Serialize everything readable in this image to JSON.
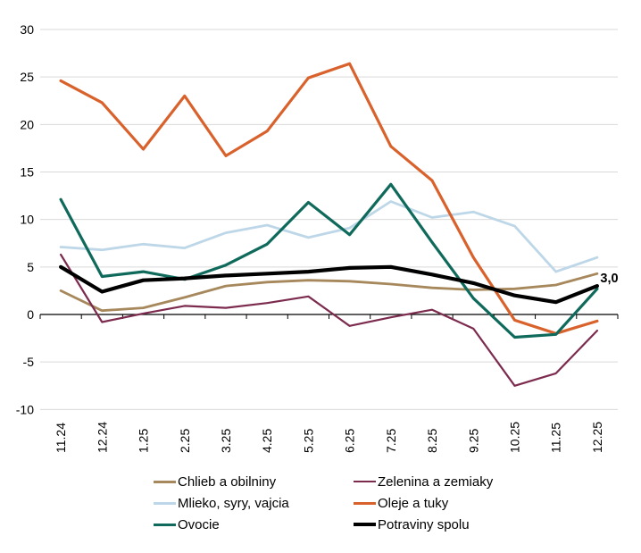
{
  "chart_data": {
    "type": "line",
    "title": "",
    "xlabel": "",
    "ylabel": "",
    "categories": [
      "11.24",
      "12.24",
      "1.25",
      "2.25",
      "3.25",
      "4.25",
      "5.25",
      "6.25",
      "7.25",
      "8.25",
      "9.25",
      "10.25",
      "11.25",
      "12.25"
    ],
    "series": [
      {
        "name": "Chlieb a obilniny",
        "color": "#A6885C",
        "stroke_width": 2.8,
        "values": [
          2.5,
          0.4,
          0.7,
          1.8,
          3.0,
          3.4,
          3.6,
          3.5,
          3.2,
          2.8,
          2.6,
          2.7,
          3.1,
          4.3
        ]
      },
      {
        "name": "Zelenina a zemiaky",
        "color": "#7C2B4E",
        "stroke_width": 2.2,
        "values": [
          6.3,
          -0.8,
          0.1,
          0.9,
          0.7,
          1.2,
          1.9,
          -1.2,
          -0.3,
          0.5,
          -1.5,
          -7.5,
          -6.2,
          -1.7
        ]
      },
      {
        "name": "Mlieko, syry, vajcia",
        "color": "#BDD7E8",
        "stroke_width": 2.8,
        "values": [
          7.1,
          6.8,
          7.4,
          7.0,
          8.6,
          9.4,
          8.1,
          9.1,
          11.9,
          10.2,
          10.8,
          9.3,
          4.5,
          6.0
        ]
      },
      {
        "name": "Oleje a tuky",
        "color": "#D9622C",
        "stroke_width": 3.2,
        "values": [
          24.6,
          22.3,
          17.4,
          23.0,
          16.7,
          19.3,
          24.9,
          26.4,
          17.7,
          14.1,
          6.0,
          -0.6,
          -2.0,
          -0.7
        ]
      },
      {
        "name": "Ovocie",
        "color": "#0F6A5C",
        "stroke_width": 3.2,
        "values": [
          12.1,
          4.0,
          4.5,
          3.7,
          5.2,
          7.4,
          11.8,
          8.4,
          13.7,
          7.6,
          1.7,
          -2.4,
          -2.1,
          2.7
        ]
      },
      {
        "name": "Potraviny spolu",
        "color": "#000000",
        "stroke_width": 4.2,
        "values": [
          5.0,
          2.4,
          3.6,
          3.8,
          4.1,
          4.3,
          4.5,
          4.9,
          5.0,
          4.2,
          3.3,
          2.0,
          1.3,
          3.0
        ]
      }
    ],
    "ylim": [
      -10,
      30
    ],
    "ytick_step": 5,
    "y_tick_labels": [
      "30",
      "25",
      "20",
      "15",
      "10",
      "5",
      "0",
      "-5",
      "-10"
    ],
    "grid": true,
    "legend_position": "bottom",
    "annotation": {
      "text": "3,0",
      "series": "Potraviny spolu",
      "point_index": 13
    }
  },
  "colors": {
    "background": "#FFFFFF",
    "gridline": "#D9D9D9",
    "axis": "#000000",
    "tick_label": "#000000"
  }
}
